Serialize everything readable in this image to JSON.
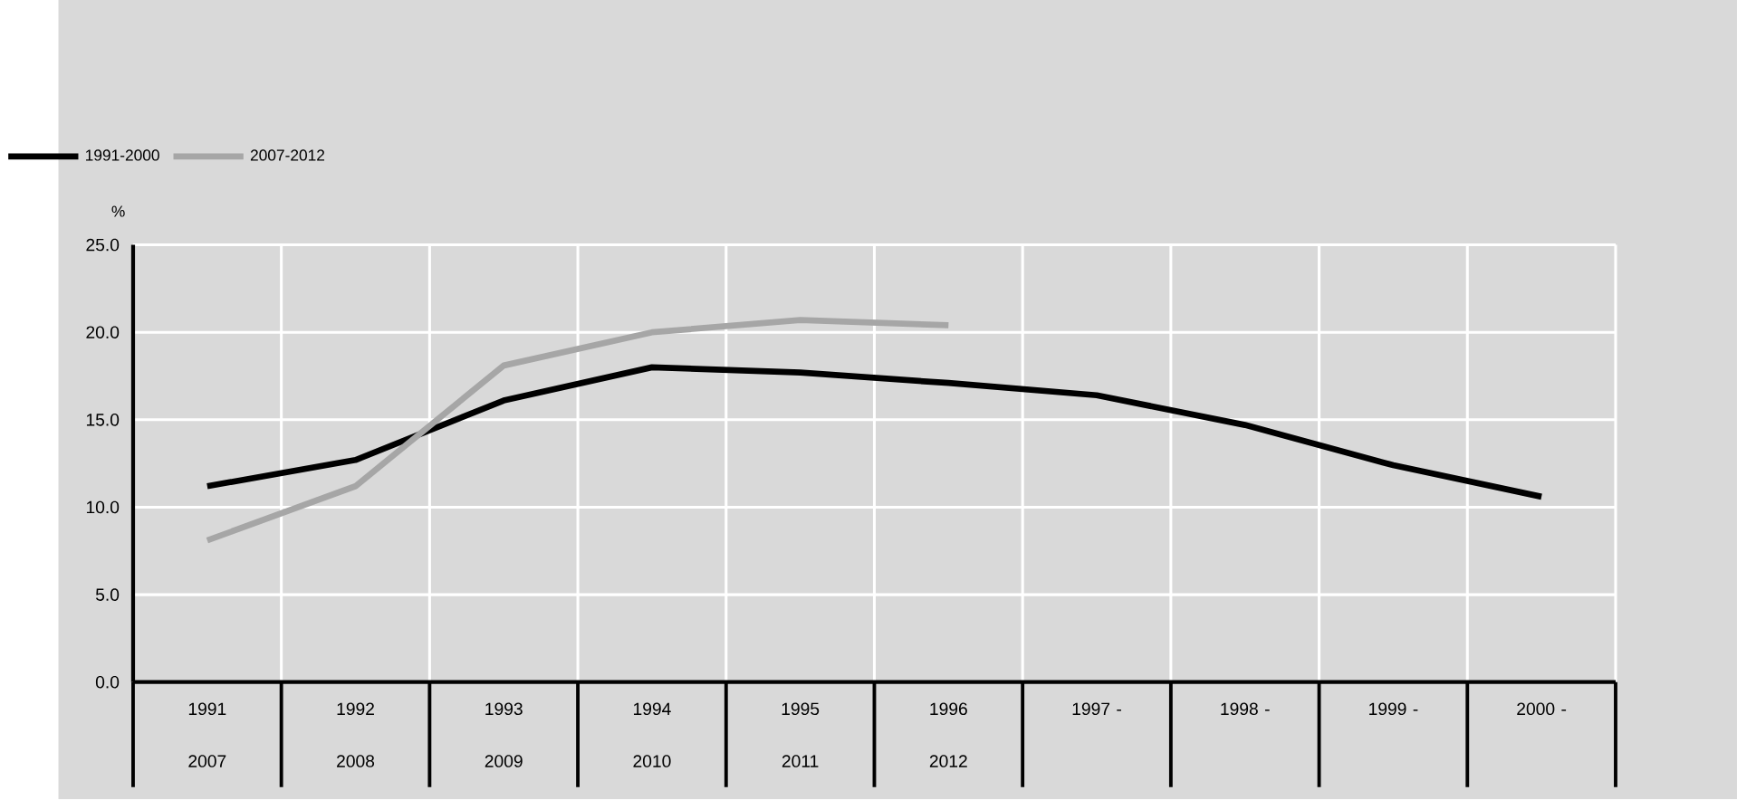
{
  "chart_data": {
    "type": "line",
    "ylabel": "%",
    "categories": [
      "1991 2007",
      "1992 2008",
      "1993 2009",
      "1994 2010",
      "1995 2011",
      "1996 2012",
      "1997 -",
      "1998 -",
      "1999 -",
      "2000 -"
    ],
    "series": [
      {
        "name": "1991-2000",
        "color": "#000000",
        "values": [
          11.2,
          12.7,
          16.1,
          18.0,
          17.7,
          17.1,
          16.4,
          14.7,
          12.4,
          10.6
        ]
      },
      {
        "name": "2007-2012",
        "color": "#a6a6a6",
        "values": [
          8.1,
          11.2,
          18.1,
          20.0,
          20.7,
          20.4,
          null,
          null,
          null,
          null
        ]
      }
    ],
    "ylim": [
      0,
      25
    ],
    "yticks": [
      {
        "value": 0,
        "label": "0.0"
      },
      {
        "value": 5,
        "label": "5.0"
      },
      {
        "value": 10,
        "label": "10.0"
      },
      {
        "value": 15,
        "label": "15.0"
      },
      {
        "value": 20,
        "label": "20.0"
      },
      {
        "value": 25,
        "label": "25.0"
      }
    ],
    "grid": true,
    "legend": "top left",
    "marker": "none",
    "line_style": "solid"
  }
}
